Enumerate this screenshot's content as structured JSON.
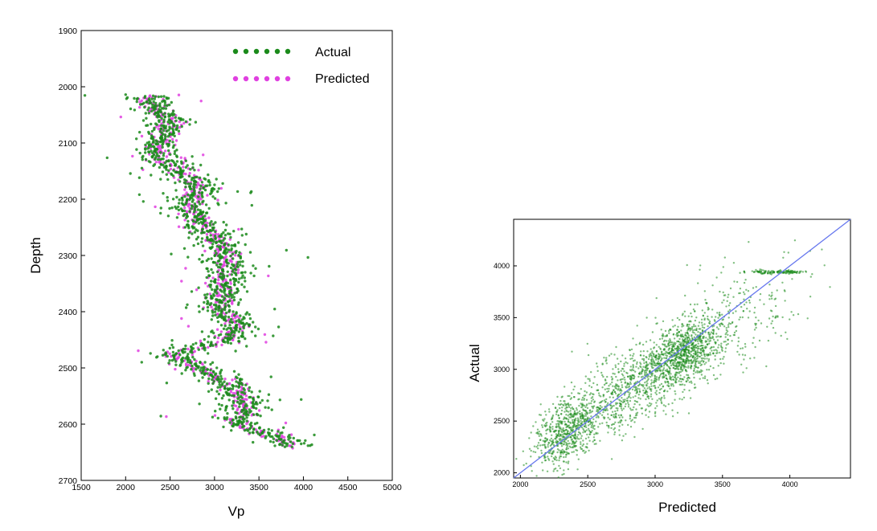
{
  "colors": {
    "actual": "#1a8a1a",
    "predicted": "#e040e0",
    "fit_line": "#6677ee",
    "frame": "#000000"
  },
  "chart_data": [
    {
      "type": "scatter",
      "title": "",
      "xlabel": "Vp",
      "ylabel": "Depth",
      "xlim": [
        1500,
        5000
      ],
      "ylim": [
        2700,
        1900
      ],
      "y_inverted": true,
      "xticks": [
        "1500",
        "2000",
        "2500",
        "3000",
        "3500",
        "4000",
        "4500",
        "5000"
      ],
      "yticks": [
        "1900",
        "2000",
        "2100",
        "2200",
        "2300",
        "2400",
        "2500",
        "2600",
        "2700"
      ],
      "legend": {
        "placement": "top-right",
        "entries": [
          "Actual",
          "Predicted"
        ]
      },
      "grid": false,
      "depth_range": [
        2015,
        2640
      ],
      "trend": {
        "depth": [
          2015,
          2040,
          2060,
          2090,
          2120,
          2150,
          2180,
          2220,
          2250,
          2290,
          2320,
          2350,
          2390,
          2420,
          2450,
          2475,
          2500,
          2530,
          2570,
          2600,
          2620,
          2640
        ],
        "vp": [
          2280,
          2320,
          2500,
          2400,
          2350,
          2600,
          2850,
          2700,
          2900,
          3100,
          3150,
          3100,
          3050,
          3250,
          3150,
          2550,
          2800,
          3200,
          3350,
          3250,
          3700,
          3900
        ]
      },
      "series": [
        {
          "name": "Actual",
          "spread_vp": 130
        },
        {
          "name": "Predicted",
          "spread_vp": 80
        }
      ]
    },
    {
      "type": "scatter",
      "title": "",
      "xlabel": "Predicted",
      "ylabel": "Actual",
      "xlim": [
        1950,
        4450
      ],
      "ylim": [
        1950,
        4450
      ],
      "xticks": [
        "2000",
        "2500",
        "3000",
        "3500",
        "4000"
      ],
      "yticks": [
        "2000",
        "2500",
        "3000",
        "3500",
        "4000"
      ],
      "grid": false,
      "fit_line": {
        "x": [
          1950,
          4450
        ],
        "y": [
          1950,
          4450
        ]
      },
      "series": [
        {
          "name": "",
          "n_points": 2600,
          "clusters": [
            {
              "cx": 2350,
              "cy": 2400,
              "sx": 120,
              "sy": 150,
              "w": 0.25
            },
            {
              "cx": 2800,
              "cy": 2800,
              "sx": 200,
              "sy": 200,
              "w": 0.25
            },
            {
              "cx": 3200,
              "cy": 3150,
              "sx": 150,
              "sy": 150,
              "w": 0.35
            },
            {
              "cx": 3600,
              "cy": 3500,
              "sx": 250,
              "sy": 250,
              "w": 0.1
            },
            {
              "cx": 3900,
              "cy": 3940,
              "sx": 120,
              "sy": 8,
              "w": 0.05
            }
          ]
        }
      ]
    }
  ]
}
